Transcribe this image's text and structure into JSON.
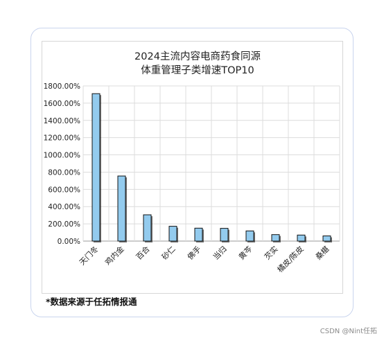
{
  "chart_data": {
    "type": "bar",
    "title_lines": [
      "2024主流内容电商药食同源",
      "体重管理子类增速TOP10"
    ],
    "categories": [
      "天门冬",
      "鸡内金",
      "百合",
      "砂仁",
      "佛手",
      "当归",
      "黄芩",
      "芡实",
      "橘皮/陈皮",
      "桑椹"
    ],
    "values": [
      1710,
      755,
      305,
      172,
      150,
      148,
      118,
      75,
      70,
      60
    ],
    "y_tick_labels": [
      "0.00%",
      "200.00%",
      "400.00%",
      "600.00%",
      "800.00%",
      "1000.00%",
      "1200.00%",
      "1400.00%",
      "1600.00%",
      "1800.00%"
    ],
    "ylim": [
      0,
      1800
    ],
    "ystep": 200,
    "grid": true,
    "bar_color": "#93cbee",
    "bar_edge_color": "#111111"
  },
  "footnote": "*数据来源于任拓情报通",
  "watermark": "CSDN @Nint任拓"
}
